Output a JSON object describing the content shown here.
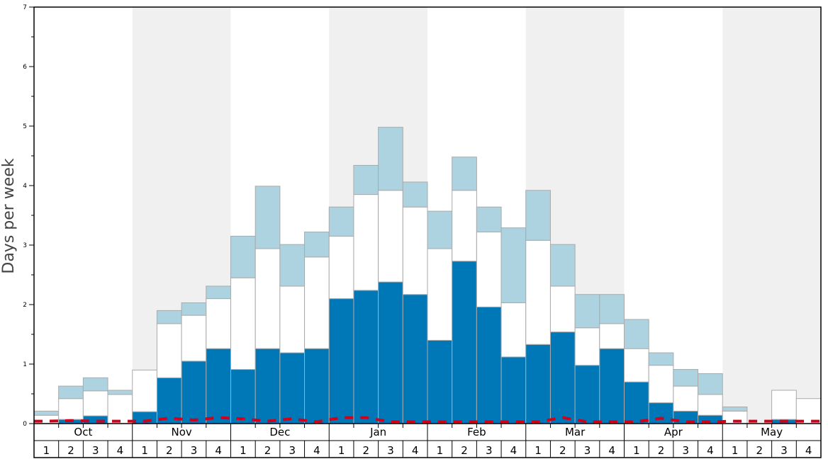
{
  "chart_data": {
    "type": "bar",
    "stacked": true,
    "title": "",
    "xlabel": "",
    "ylabel": "Days per week",
    "ylim": [
      0,
      7
    ],
    "y_ticks": [
      "0",
      "1",
      "2",
      "3",
      "4",
      "5",
      "6",
      "7"
    ],
    "months": [
      "Oct",
      "Nov",
      "Dec",
      "Jan",
      "Feb",
      "Mar",
      "Apr",
      "May"
    ],
    "weeks": [
      "1",
      "2",
      "3",
      "4"
    ],
    "alternate_month_shading": true,
    "colors": {
      "dark": "#0077b6",
      "middle": "#ffffff",
      "light": "#add3e0",
      "line": "#d0021b",
      "shade": "#f0f0f0",
      "bar_border": "#aaaaaa"
    },
    "series": [
      {
        "values": [
          0.0,
          0.07,
          0.13,
          0.0,
          0.2,
          0.77,
          1.05,
          1.26,
          0.91,
          1.26,
          1.19,
          1.26,
          2.1,
          2.24,
          2.38,
          2.17,
          1.4,
          2.73,
          1.96,
          1.12,
          1.33,
          1.54,
          0.98,
          1.26,
          0.7,
          0.35,
          0.21,
          0.14,
          0.0,
          0.0,
          0.07,
          0.0
        ]
      },
      {
        "values": [
          0.14,
          0.35,
          0.42,
          0.49,
          0.7,
          0.91,
          0.77,
          0.84,
          1.54,
          1.68,
          1.12,
          1.54,
          1.05,
          1.61,
          1.54,
          1.47,
          1.54,
          1.19,
          1.26,
          0.91,
          1.75,
          0.77,
          0.63,
          0.42,
          0.56,
          0.63,
          0.42,
          0.35,
          0.21,
          0.0,
          0.49,
          0.42
        ]
      },
      {
        "values": [
          0.07,
          0.21,
          0.22,
          0.07,
          0.0,
          0.22,
          0.21,
          0.21,
          0.7,
          1.05,
          0.7,
          0.42,
          0.49,
          0.49,
          1.06,
          0.42,
          0.63,
          0.56,
          0.42,
          1.26,
          0.84,
          0.7,
          0.56,
          0.49,
          0.49,
          0.21,
          0.28,
          0.35,
          0.07,
          0.0,
          0.0,
          0.0
        ]
      },
      {
        "type": "line",
        "style": "dashed",
        "values": [
          0.04,
          0.05,
          0.04,
          0.04,
          0.04,
          0.09,
          0.06,
          0.1,
          0.08,
          0.04,
          0.08,
          0.03,
          0.1,
          0.1,
          0.03,
          0.03,
          0.03,
          0.03,
          0.03,
          0.03,
          0.03,
          0.1,
          0.03,
          0.03,
          0.03,
          0.09,
          0.03,
          0.03,
          0.04,
          0.04,
          0.04,
          0.04
        ]
      }
    ]
  }
}
